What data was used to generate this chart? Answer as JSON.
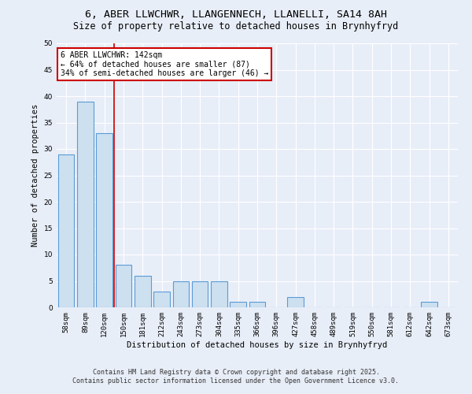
{
  "title_line1": "6, ABER LLWCHWR, LLANGENNECH, LLANELLI, SA14 8AH",
  "title_line2": "Size of property relative to detached houses in Brynhyfryd",
  "xlabel": "Distribution of detached houses by size in Brynhyfryd",
  "ylabel": "Number of detached properties",
  "categories": [
    "58sqm",
    "89sqm",
    "120sqm",
    "150sqm",
    "181sqm",
    "212sqm",
    "243sqm",
    "273sqm",
    "304sqm",
    "335sqm",
    "366sqm",
    "396sqm",
    "427sqm",
    "458sqm",
    "489sqm",
    "519sqm",
    "550sqm",
    "581sqm",
    "612sqm",
    "642sqm",
    "673sqm"
  ],
  "values": [
    29,
    39,
    33,
    8,
    6,
    3,
    5,
    5,
    5,
    1,
    1,
    0,
    2,
    0,
    0,
    0,
    0,
    0,
    0,
    1,
    0
  ],
  "bar_color": "#cce0f0",
  "bar_edge_color": "#5b9bd5",
  "red_line_index": 2.5,
  "annotation_text": "6 ABER LLWCHWR: 142sqm\n← 64% of detached houses are smaller (87)\n34% of semi-detached houses are larger (46) →",
  "annotation_box_color": "#ffffff",
  "annotation_box_edge": "#cc0000",
  "ylim": [
    0,
    50
  ],
  "yticks": [
    0,
    5,
    10,
    15,
    20,
    25,
    30,
    35,
    40,
    45,
    50
  ],
  "footnote_line1": "Contains HM Land Registry data © Crown copyright and database right 2025.",
  "footnote_line2": "Contains public sector information licensed under the Open Government Licence v3.0.",
  "bg_color": "#e8eef8",
  "plot_bg_color": "#e8eef8",
  "grid_color": "#ffffff",
  "red_line_color": "#cc0000",
  "title_fontsize": 9.5,
  "subtitle_fontsize": 8.5,
  "axis_label_fontsize": 7.5,
  "tick_fontsize": 6.5,
  "annotation_fontsize": 7,
  "footnote_fontsize": 6
}
